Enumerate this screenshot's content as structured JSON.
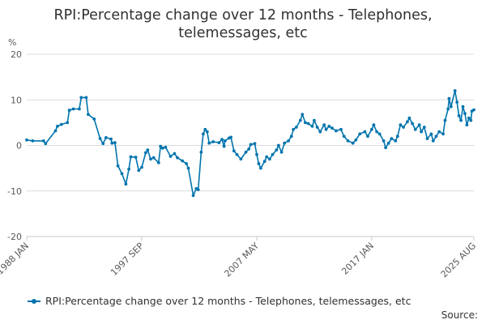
{
  "title_lines": [
    "RPI:Percentage change over 12 months - Telephones,",
    "telemessages, etc"
  ],
  "y_unit": "%",
  "source_label": "Source:",
  "series_color": "#0074ad",
  "chart_data": {
    "type": "line",
    "title": "RPI:Percentage change over 12 months - Telephones, telemessages, etc",
    "ylabel": "%",
    "ylim": [
      -20,
      20
    ],
    "y_ticks": [
      "20",
      "10",
      "0",
      "-10",
      "-20"
    ],
    "x_ticks": [
      "1988 JAN",
      "1997 SEP",
      "2007 MAY",
      "2017 JAN",
      "2025 AUG"
    ],
    "grid": "horizontal",
    "legend_position": "bottom",
    "series": [
      {
        "name": "RPI:Percentage change over 12 months - Telephones, telemessages, etc",
        "points": [
          [
            "1988 JAN",
            1.2
          ],
          [
            "1988 JUL",
            1.0
          ],
          [
            "1989 JUN",
            1.0
          ],
          [
            "1989 AUG",
            0.4
          ],
          [
            "1990 JUN",
            3.2
          ],
          [
            "1990 AUG",
            4.2
          ],
          [
            "1990 DEC",
            4.6
          ],
          [
            "1991 JUN",
            5.0
          ],
          [
            "1991 AUG",
            7.7
          ],
          [
            "1991 DEC",
            8.0
          ],
          [
            "1992 JUN",
            8.0
          ],
          [
            "1992 AUG",
            10.5
          ],
          [
            "1993 JAN",
            10.5
          ],
          [
            "1993 MAR",
            6.8
          ],
          [
            "1993 SEP",
            5.8
          ],
          [
            "1994 MAR",
            1.5
          ],
          [
            "1994 JUN",
            0.4
          ],
          [
            "1994 SEP",
            1.7
          ],
          [
            "1995 FEB",
            1.4
          ],
          [
            "1995 MAR",
            0.5
          ],
          [
            "1995 JUN",
            0.6
          ],
          [
            "1995 SEP",
            -4.5
          ],
          [
            "1996 JAN",
            -6.2
          ],
          [
            "1996 MAY",
            -8.5
          ],
          [
            "1996 AUG",
            -5.2
          ],
          [
            "1996 OCT",
            -2.5
          ],
          [
            "1997 MAR",
            -2.6
          ],
          [
            "1997 JUN",
            -5.5
          ],
          [
            "1997 SEP",
            -4.8
          ],
          [
            "1998 JAN",
            -1.6
          ],
          [
            "1998 MAR",
            -1.0
          ],
          [
            "1998 JUN",
            -3.0
          ],
          [
            "1998 SEP",
            -2.7
          ],
          [
            "1999 FEB",
            -3.8
          ],
          [
            "1999 APR",
            -0.2
          ],
          [
            "1999 JUN",
            -0.6
          ],
          [
            "1999 SEP",
            -0.4
          ],
          [
            "2000 FEB",
            -2.4
          ],
          [
            "2000 JUN",
            -1.8
          ],
          [
            "2000 SEP",
            -2.7
          ],
          [
            "2001 FEB",
            -3.4
          ],
          [
            "2001 JUN",
            -4.0
          ],
          [
            "2001 AUG",
            -5.0
          ],
          [
            "2002 JAN",
            -11.0
          ],
          [
            "2002 APR",
            -9.5
          ],
          [
            "2002 JUN",
            -9.7
          ],
          [
            "2002 SEP",
            -1.5
          ],
          [
            "2002 NOV",
            2.5
          ],
          [
            "2003 JAN",
            3.5
          ],
          [
            "2003 MAR",
            3.0
          ],
          [
            "2003 MAY",
            0.5
          ],
          [
            "2003 SEP",
            0.8
          ],
          [
            "2004 MAR",
            0.6
          ],
          [
            "2004 JUN",
            1.3
          ],
          [
            "2004 AUG",
            -0.2
          ],
          [
            "2004 SEP",
            1.0
          ],
          [
            "2005 JAN",
            1.6
          ],
          [
            "2005 MAR",
            1.8
          ],
          [
            "2005 JUN",
            -1.2
          ],
          [
            "2005 SEP",
            -2.0
          ],
          [
            "2006 JAN",
            -3.0
          ],
          [
            "2006 JUN",
            -1.5
          ],
          [
            "2006 SEP",
            -0.8
          ],
          [
            "2006 NOV",
            0.2
          ],
          [
            "2007 MAR",
            0.4
          ],
          [
            "2007 MAY",
            -2.0
          ],
          [
            "2007 JUL",
            -4.0
          ],
          [
            "2007 SEP",
            -5.0
          ],
          [
            "2008 JAN",
            -3.5
          ],
          [
            "2008 MAR",
            -2.5
          ],
          [
            "2008 JUN",
            -3.0
          ],
          [
            "2008 SEP",
            -2.0
          ],
          [
            "2009 JAN",
            -1.0
          ],
          [
            "2009 MAR",
            0.0
          ],
          [
            "2009 JUN",
            -1.5
          ],
          [
            "2009 SEP",
            0.5
          ],
          [
            "2010 JAN",
            1.0
          ],
          [
            "2010 APR",
            2.0
          ],
          [
            "2010 JUN",
            3.5
          ],
          [
            "2010 SEP",
            4.0
          ],
          [
            "2011 JAN",
            5.5
          ],
          [
            "2011 MAR",
            6.8
          ],
          [
            "2011 JUN",
            5.0
          ],
          [
            "2011 SEP",
            4.8
          ],
          [
            "2012 JAN",
            4.2
          ],
          [
            "2012 MAR",
            5.5
          ],
          [
            "2012 JUN",
            4.0
          ],
          [
            "2012 SEP",
            3.0
          ],
          [
            "2013 JAN",
            4.5
          ],
          [
            "2013 MAR",
            3.5
          ],
          [
            "2013 JUN",
            4.2
          ],
          [
            "2013 SEP",
            3.8
          ],
          [
            "2014 JAN",
            3.2
          ],
          [
            "2014 JUN",
            3.5
          ],
          [
            "2014 SEP",
            2.0
          ],
          [
            "2015 JAN",
            1.0
          ],
          [
            "2015 JUN",
            0.5
          ],
          [
            "2015 SEP",
            1.2
          ],
          [
            "2016 JAN",
            2.5
          ],
          [
            "2016 JUN",
            3.0
          ],
          [
            "2016 SEP",
            2.0
          ],
          [
            "2017 JAN",
            3.5
          ],
          [
            "2017 MAR",
            4.5
          ],
          [
            "2017 JUN",
            3.0
          ],
          [
            "2017 SEP",
            2.5
          ],
          [
            "2018 JAN",
            1.0
          ],
          [
            "2018 MAR",
            -0.5
          ],
          [
            "2018 JUN",
            0.5
          ],
          [
            "2018 SEP",
            1.5
          ],
          [
            "2019 JAN",
            1.0
          ],
          [
            "2019 MAR",
            2.0
          ],
          [
            "2019 JUN",
            4.5
          ],
          [
            "2019 SEP",
            4.0
          ],
          [
            "2020 JAN",
            5.2
          ],
          [
            "2020 MAR",
            6.0
          ],
          [
            "2020 JUN",
            4.8
          ],
          [
            "2020 SEP",
            3.5
          ],
          [
            "2021 JAN",
            4.5
          ],
          [
            "2021 MAR",
            3.0
          ],
          [
            "2021 JUN",
            4.0
          ],
          [
            "2021 SEP",
            1.5
          ],
          [
            "2022 JAN",
            2.5
          ],
          [
            "2022 MAR",
            1.0
          ],
          [
            "2022 JUN",
            2.0
          ],
          [
            "2022 SEP",
            3.0
          ],
          [
            "2023 JAN",
            2.5
          ],
          [
            "2023 MAR",
            5.5
          ],
          [
            "2023 JUN",
            8.0
          ],
          [
            "2023 JUL",
            10.3
          ],
          [
            "2023 SEP",
            8.5
          ],
          [
            "2024 JAN",
            12.0
          ],
          [
            "2024 MAR",
            9.5
          ],
          [
            "2024 MAY",
            6.5
          ],
          [
            "2024 JUL",
            5.5
          ],
          [
            "2024 SEP",
            8.5
          ],
          [
            "2024 NOV",
            7.0
          ],
          [
            "2025 JAN",
            4.5
          ],
          [
            "2025 MAR",
            6.0
          ],
          [
            "2025 MAY",
            5.5
          ],
          [
            "2025 JUN",
            7.5
          ],
          [
            "2025 AUG",
            7.8
          ]
        ]
      }
    ]
  }
}
